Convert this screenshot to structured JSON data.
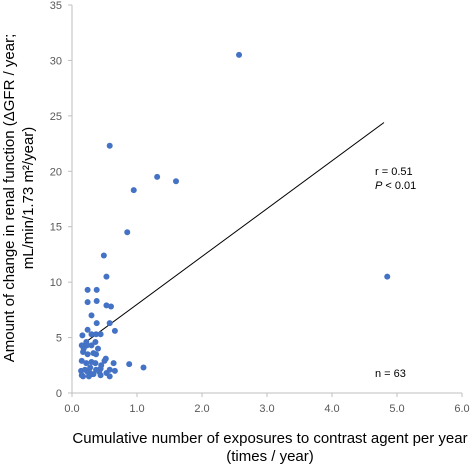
{
  "chart_data": {
    "type": "scatter",
    "title": "",
    "xlabel": [
      "Cumulative number of exposures to contrast agent per year",
      "(times / year)"
    ],
    "ylabel": [
      "Amount of change in renal function (ΔGFR / year;",
      "mL/min/1.73 m²/year)"
    ],
    "xlim": [
      0,
      6
    ],
    "ylim": [
      0,
      35
    ],
    "xticks": [
      0,
      1,
      2,
      3,
      4,
      5,
      6
    ],
    "xtick_labels": [
      "0.0",
      "1.0",
      "2.0",
      "3.0",
      "4.0",
      "5.0",
      "6.0"
    ],
    "yticks": [
      0,
      5,
      10,
      15,
      20,
      25,
      30,
      35
    ],
    "ytick_labels": [
      "0",
      "5",
      "10",
      "15",
      "20",
      "25",
      "30",
      "35"
    ],
    "grid": false,
    "marker_color": "#4472C4",
    "line_color": "#000000",
    "points": [
      [
        2.57,
        30.5
      ],
      [
        0.58,
        22.3
      ],
      [
        1.31,
        19.5
      ],
      [
        1.6,
        19.1
      ],
      [
        0.95,
        18.3
      ],
      [
        0.85,
        14.5
      ],
      [
        0.49,
        12.4
      ],
      [
        0.53,
        10.5
      ],
      [
        4.85,
        10.5
      ],
      [
        0.24,
        9.3
      ],
      [
        0.38,
        9.3
      ],
      [
        0.24,
        8.2
      ],
      [
        0.38,
        8.3
      ],
      [
        0.53,
        7.9
      ],
      [
        0.6,
        7.8
      ],
      [
        0.3,
        7.0
      ],
      [
        0.58,
        6.3
      ],
      [
        0.38,
        6.3
      ],
      [
        0.24,
        5.7
      ],
      [
        0.66,
        5.6
      ],
      [
        0.16,
        5.2
      ],
      [
        0.3,
        5.3
      ],
      [
        0.37,
        5.3
      ],
      [
        0.44,
        5.3
      ],
      [
        0.22,
        4.6
      ],
      [
        0.15,
        4.3
      ],
      [
        0.23,
        4.3
      ],
      [
        0.3,
        4.3
      ],
      [
        0.36,
        4.6
      ],
      [
        0.18,
        4.0
      ],
      [
        0.17,
        3.7
      ],
      [
        0.24,
        3.5
      ],
      [
        0.33,
        3.6
      ],
      [
        0.37,
        3.5
      ],
      [
        0.15,
        2.9
      ],
      [
        0.22,
        2.7
      ],
      [
        0.3,
        2.8
      ],
      [
        0.36,
        2.7
      ],
      [
        0.5,
        2.9
      ],
      [
        0.52,
        3.1
      ],
      [
        0.64,
        2.7
      ],
      [
        0.88,
        2.6
      ],
      [
        0.14,
        2.0
      ],
      [
        0.2,
        2.1
      ],
      [
        0.26,
        2.0
      ],
      [
        0.3,
        1.7
      ],
      [
        0.37,
        2.1
      ],
      [
        0.44,
        2.2
      ],
      [
        0.58,
        2.1
      ],
      [
        0.66,
        2.0
      ],
      [
        1.1,
        2.3
      ],
      [
        0.15,
        1.6
      ],
      [
        0.17,
        1.5
      ],
      [
        0.26,
        1.5
      ],
      [
        0.33,
        1.7
      ],
      [
        0.44,
        1.6
      ],
      [
        0.53,
        1.8
      ],
      [
        0.24,
        1.9
      ],
      [
        0.45,
        2.5
      ],
      [
        0.42,
        1.9
      ],
      [
        0.58,
        1.5
      ],
      [
        0.28,
        2.3
      ],
      [
        0.4,
        4.0
      ]
    ],
    "trendline": {
      "x": [
        0.12,
        4.8
      ],
      "y": [
        4.2,
        24.4
      ]
    },
    "annotations": {
      "r": "r = 0.51",
      "p_italic": "P",
      "p_rest": " < 0.01",
      "n": "n = 63"
    }
  }
}
